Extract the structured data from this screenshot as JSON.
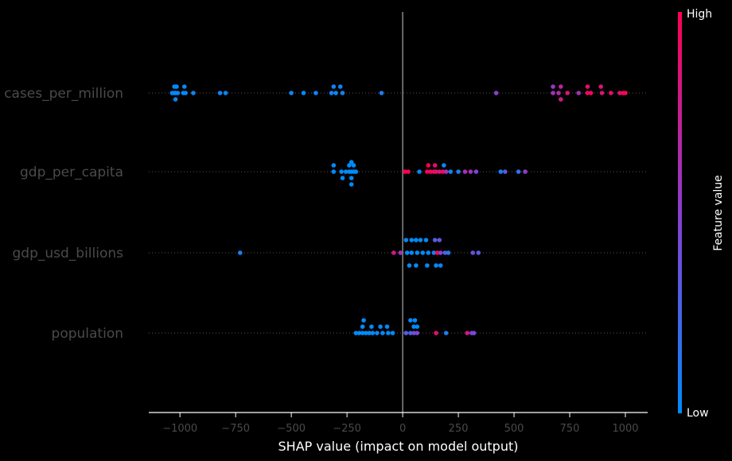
{
  "chart_data": {
    "type": "scatter",
    "title": "",
    "xlabel": "SHAP value (impact on model output)",
    "xlim": [
      -1140,
      1100
    ],
    "xticks": [
      -1000,
      -750,
      -500,
      -250,
      0,
      250,
      500,
      750,
      1000
    ],
    "xtick_labels": [
      "−1000",
      "−750",
      "−500",
      "−250",
      "0",
      "250",
      "500",
      "750",
      "1000"
    ],
    "features": [
      "cases_per_million",
      "gdp_per_capita",
      "gdp_usd_billions",
      "population"
    ],
    "colorbar": {
      "high_label": "High",
      "low_label": "Low",
      "title": "Feature value",
      "low_color": "#008bfb",
      "high_color": "#ff0052"
    },
    "colors": {
      "background": "#000000",
      "zero_line": "#aaaaaa",
      "row_line": "#555555"
    },
    "series": [
      {
        "feature": "cases_per_million",
        "points": [
          {
            "x": -1025,
            "lane": -2,
            "v": 0.0
          },
          {
            "x": -1015,
            "lane": -2,
            "v": 0.0
          },
          {
            "x": -980,
            "lane": -2,
            "v": 0.02
          },
          {
            "x": -310,
            "lane": -2,
            "v": 0.05
          },
          {
            "x": -280,
            "lane": -2,
            "v": 0.05
          },
          {
            "x": 675,
            "lane": -2,
            "v": 0.55
          },
          {
            "x": 710,
            "lane": -2,
            "v": 0.7
          },
          {
            "x": 830,
            "lane": -2,
            "v": 0.9
          },
          {
            "x": 890,
            "lane": -2,
            "v": 0.85
          },
          {
            "x": -1035,
            "lane": 0,
            "v": 0.0
          },
          {
            "x": -1025,
            "lane": 0,
            "v": 0.0
          },
          {
            "x": -1020,
            "lane": 0,
            "v": 0.0
          },
          {
            "x": -1010,
            "lane": 0,
            "v": 0.02
          },
          {
            "x": -985,
            "lane": 0,
            "v": 0.0
          },
          {
            "x": -975,
            "lane": 0,
            "v": 0.02
          },
          {
            "x": -940,
            "lane": 0,
            "v": 0.05
          },
          {
            "x": -820,
            "lane": 0,
            "v": 0.05
          },
          {
            "x": -795,
            "lane": 0,
            "v": 0.02
          },
          {
            "x": -500,
            "lane": 0,
            "v": 0.05
          },
          {
            "x": -445,
            "lane": 0,
            "v": 0.02
          },
          {
            "x": -390,
            "lane": 0,
            "v": 0.05
          },
          {
            "x": -320,
            "lane": 0,
            "v": 0.05
          },
          {
            "x": -300,
            "lane": 0,
            "v": 0.02
          },
          {
            "x": -270,
            "lane": 0,
            "v": 0.05
          },
          {
            "x": -95,
            "lane": 0,
            "v": 0.1
          },
          {
            "x": 420,
            "lane": 0,
            "v": 0.5
          },
          {
            "x": 675,
            "lane": 0,
            "v": 0.6
          },
          {
            "x": 700,
            "lane": 0,
            "v": 0.65
          },
          {
            "x": 740,
            "lane": 0,
            "v": 0.85
          },
          {
            "x": 790,
            "lane": 0,
            "v": 0.6
          },
          {
            "x": 830,
            "lane": 0,
            "v": 0.95
          },
          {
            "x": 845,
            "lane": 0,
            "v": 0.95
          },
          {
            "x": 895,
            "lane": 0,
            "v": 0.85
          },
          {
            "x": 935,
            "lane": 0,
            "v": 0.9
          },
          {
            "x": 975,
            "lane": 0,
            "v": 0.9
          },
          {
            "x": 990,
            "lane": 0,
            "v": 0.95
          },
          {
            "x": 1000,
            "lane": 0,
            "v": 0.95
          },
          {
            "x": -1020,
            "lane": 2,
            "v": 0.0
          },
          {
            "x": 710,
            "lane": 2,
            "v": 0.8
          }
        ]
      },
      {
        "feature": "gdp_per_capita",
        "points": [
          {
            "x": -230,
            "lane": -3,
            "v": 0.0
          },
          {
            "x": -310,
            "lane": -2,
            "v": 0.0
          },
          {
            "x": -240,
            "lane": -2,
            "v": 0.0
          },
          {
            "x": -220,
            "lane": -2,
            "v": 0.0
          },
          {
            "x": 115,
            "lane": -2,
            "v": 1.0
          },
          {
            "x": 145,
            "lane": -2,
            "v": 0.9
          },
          {
            "x": 185,
            "lane": -2,
            "v": 0.05
          },
          {
            "x": -310,
            "lane": 0,
            "v": 0.0
          },
          {
            "x": -275,
            "lane": 0,
            "v": 0.0
          },
          {
            "x": -255,
            "lane": 0,
            "v": 0.0
          },
          {
            "x": -240,
            "lane": 0,
            "v": 0.0
          },
          {
            "x": -230,
            "lane": 0,
            "v": 0.0
          },
          {
            "x": -220,
            "lane": 0,
            "v": 0.0
          },
          {
            "x": -210,
            "lane": 0,
            "v": 0.0
          },
          {
            "x": 10,
            "lane": 0,
            "v": 1.0
          },
          {
            "x": 25,
            "lane": 0,
            "v": 1.0
          },
          {
            "x": 75,
            "lane": 0,
            "v": 0.05
          },
          {
            "x": 110,
            "lane": 0,
            "v": 1.0
          },
          {
            "x": 125,
            "lane": 0,
            "v": 0.95
          },
          {
            "x": 140,
            "lane": 0,
            "v": 0.9
          },
          {
            "x": 150,
            "lane": 0,
            "v": 0.9
          },
          {
            "x": 165,
            "lane": 0,
            "v": 0.85
          },
          {
            "x": 180,
            "lane": 0,
            "v": 0.95
          },
          {
            "x": 195,
            "lane": 0,
            "v": 0.6
          },
          {
            "x": 215,
            "lane": 0,
            "v": 0.1
          },
          {
            "x": 250,
            "lane": 0,
            "v": 0.1
          },
          {
            "x": 280,
            "lane": 0,
            "v": 0.6
          },
          {
            "x": 305,
            "lane": 0,
            "v": 0.6
          },
          {
            "x": 330,
            "lane": 0,
            "v": 0.45
          },
          {
            "x": 440,
            "lane": 0,
            "v": 0.1
          },
          {
            "x": 460,
            "lane": 0,
            "v": 0.3
          },
          {
            "x": 520,
            "lane": 0,
            "v": 0.2
          },
          {
            "x": 550,
            "lane": 0,
            "v": 0.5
          },
          {
            "x": -270,
            "lane": 2,
            "v": 0.0
          },
          {
            "x": -230,
            "lane": 2,
            "v": 0.0
          },
          {
            "x": -230,
            "lane": 4,
            "v": 0.0
          }
        ]
      },
      {
        "feature": "gdp_usd_billions",
        "points": [
          {
            "x": 15,
            "lane": -4,
            "v": 0.0
          },
          {
            "x": 40,
            "lane": -4,
            "v": 0.0
          },
          {
            "x": 60,
            "lane": -4,
            "v": 0.0
          },
          {
            "x": 80,
            "lane": -4,
            "v": 0.0
          },
          {
            "x": 105,
            "lane": -4,
            "v": 0.0
          },
          {
            "x": 145,
            "lane": -4,
            "v": 0.3
          },
          {
            "x": 165,
            "lane": -4,
            "v": 0.35
          },
          {
            "x": -730,
            "lane": 0,
            "v": 0.05
          },
          {
            "x": -40,
            "lane": 0,
            "v": 0.8
          },
          {
            "x": -10,
            "lane": 0,
            "v": 0.6
          },
          {
            "x": 20,
            "lane": 0,
            "v": 0.0
          },
          {
            "x": 40,
            "lane": 0,
            "v": 0.0
          },
          {
            "x": 65,
            "lane": 0,
            "v": 0.0
          },
          {
            "x": 90,
            "lane": 0,
            "v": 0.0
          },
          {
            "x": 115,
            "lane": 0,
            "v": 0.0
          },
          {
            "x": 140,
            "lane": 0,
            "v": 0.05
          },
          {
            "x": 155,
            "lane": 0,
            "v": 0.95
          },
          {
            "x": 170,
            "lane": 0,
            "v": 0.5
          },
          {
            "x": 190,
            "lane": 0,
            "v": 0.3
          },
          {
            "x": 205,
            "lane": 0,
            "v": 0.1
          },
          {
            "x": 315,
            "lane": 0,
            "v": 0.4
          },
          {
            "x": 340,
            "lane": 0,
            "v": 0.3
          },
          {
            "x": 30,
            "lane": 4,
            "v": 0.0
          },
          {
            "x": 60,
            "lane": 4,
            "v": 0.0
          },
          {
            "x": 110,
            "lane": 4,
            "v": 0.0
          },
          {
            "x": 150,
            "lane": 4,
            "v": 0.0
          },
          {
            "x": 170,
            "lane": 4,
            "v": 0.05
          }
        ]
      },
      {
        "feature": "population",
        "points": [
          {
            "x": -175,
            "lane": -4,
            "v": 0.0
          },
          {
            "x": 35,
            "lane": -4,
            "v": 0.0
          },
          {
            "x": 55,
            "lane": -4,
            "v": 0.0
          },
          {
            "x": -180,
            "lane": -2,
            "v": 0.0
          },
          {
            "x": -140,
            "lane": -2,
            "v": 0.0
          },
          {
            "x": -100,
            "lane": -2,
            "v": 0.0
          },
          {
            "x": -70,
            "lane": -2,
            "v": 0.0
          },
          {
            "x": 50,
            "lane": -2,
            "v": 0.0
          },
          {
            "x": 65,
            "lane": -2,
            "v": 0.0
          },
          {
            "x": -210,
            "lane": 0,
            "v": 0.0
          },
          {
            "x": -195,
            "lane": 0,
            "v": 0.0
          },
          {
            "x": -180,
            "lane": 0,
            "v": 0.0
          },
          {
            "x": -165,
            "lane": 0,
            "v": 0.0
          },
          {
            "x": -150,
            "lane": 0,
            "v": 0.0
          },
          {
            "x": -135,
            "lane": 0,
            "v": 0.0
          },
          {
            "x": -115,
            "lane": 0,
            "v": 0.05
          },
          {
            "x": -90,
            "lane": 0,
            "v": 0.0
          },
          {
            "x": -65,
            "lane": 0,
            "v": 0.0
          },
          {
            "x": -45,
            "lane": 0,
            "v": 0.0
          },
          {
            "x": 15,
            "lane": 0,
            "v": 0.3
          },
          {
            "x": 35,
            "lane": 0,
            "v": 0.3
          },
          {
            "x": 50,
            "lane": 0,
            "v": 0.4
          },
          {
            "x": 65,
            "lane": 0,
            "v": 0.45
          },
          {
            "x": 150,
            "lane": 0,
            "v": 0.9
          },
          {
            "x": 195,
            "lane": 0,
            "v": 0.1
          },
          {
            "x": 290,
            "lane": 0,
            "v": 0.8
          },
          {
            "x": 310,
            "lane": 0,
            "v": 0.5
          },
          {
            "x": 320,
            "lane": 0,
            "v": 0.4
          }
        ]
      }
    ]
  }
}
